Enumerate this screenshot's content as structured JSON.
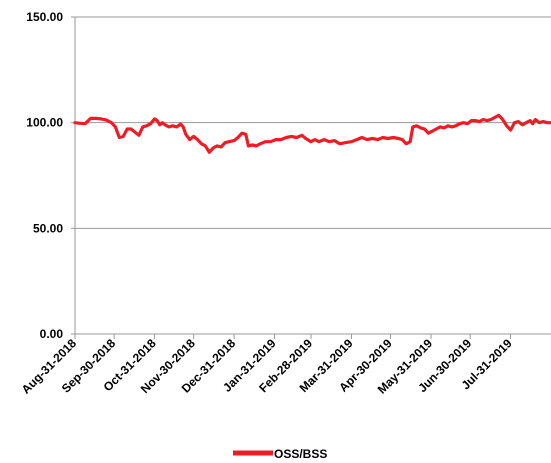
{
  "chart_data": {
    "type": "line",
    "title": "",
    "xlabel": "",
    "ylabel": "",
    "ylim": [
      0,
      150
    ],
    "y_ticks": [
      "0.00",
      "50.00",
      "100.00",
      "150.00"
    ],
    "x_range": [
      "2018-08-31",
      "2019-08-31"
    ],
    "x_ticks": [
      {
        "date": "2018-08-31",
        "label": "Aug-31-2018"
      },
      {
        "date": "2018-09-30",
        "label": "Sep-30-2018"
      },
      {
        "date": "2018-10-31",
        "label": "Oct-31-2018"
      },
      {
        "date": "2018-11-30",
        "label": "Nov-30-2018"
      },
      {
        "date": "2018-12-31",
        "label": "Dec-31-2018"
      },
      {
        "date": "2019-01-31",
        "label": "Jan-31-2019"
      },
      {
        "date": "2019-02-28",
        "label": "Feb-28-2019"
      },
      {
        "date": "2019-03-31",
        "label": "Mar-31-2019"
      },
      {
        "date": "2019-04-30",
        "label": "Apr-30-2019"
      },
      {
        "date": "2019-05-31",
        "label": "May-31-2019"
      },
      {
        "date": "2019-06-30",
        "label": "Jun-30-2019"
      },
      {
        "date": "2019-07-31",
        "label": "Jul-31-2019"
      }
    ],
    "grid": "horizontal",
    "legend": "bottom-center",
    "series": [
      {
        "name": "OSS/BSS",
        "color": "#ee1c25",
        "points": [
          [
            "2018-08-31",
            100.0
          ],
          [
            "2018-09-04",
            99.7
          ],
          [
            "2018-09-08",
            99.6
          ],
          [
            "2018-09-12",
            102.0
          ],
          [
            "2018-09-16",
            102.0
          ],
          [
            "2018-09-20",
            101.8
          ],
          [
            "2018-09-24",
            101.2
          ],
          [
            "2018-09-28",
            100.0
          ],
          [
            "2018-10-01",
            98.0
          ],
          [
            "2018-10-04",
            93.0
          ],
          [
            "2018-10-07",
            93.5
          ],
          [
            "2018-10-10",
            97.0
          ],
          [
            "2018-10-13",
            97.0
          ],
          [
            "2018-10-16",
            95.5
          ],
          [
            "2018-10-19",
            94.0
          ],
          [
            "2018-10-22",
            98.0
          ],
          [
            "2018-10-25",
            98.5
          ],
          [
            "2018-10-28",
            99.5
          ],
          [
            "2018-10-31",
            101.8
          ],
          [
            "2018-11-02",
            101.0
          ],
          [
            "2018-11-04",
            99.0
          ],
          [
            "2018-11-06",
            100.0
          ],
          [
            "2018-11-08",
            99.0
          ],
          [
            "2018-11-11",
            98.0
          ],
          [
            "2018-11-14",
            98.5
          ],
          [
            "2018-11-17",
            98.0
          ],
          [
            "2018-11-20",
            99.3
          ],
          [
            "2018-11-22",
            98.0
          ],
          [
            "2018-11-24",
            94.5
          ],
          [
            "2018-11-27",
            92.0
          ],
          [
            "2018-11-30",
            93.5
          ],
          [
            "2018-12-03",
            92.0
          ],
          [
            "2018-12-06",
            90.0
          ],
          [
            "2018-12-09",
            89.0
          ],
          [
            "2018-12-12",
            86.0
          ],
          [
            "2018-12-15",
            88.0
          ],
          [
            "2018-12-18",
            89.0
          ],
          [
            "2018-12-21",
            88.5
          ],
          [
            "2018-12-24",
            90.5
          ],
          [
            "2018-12-27",
            91.0
          ],
          [
            "2018-12-31",
            91.5
          ],
          [
            "2019-01-03",
            93.0
          ],
          [
            "2019-01-06",
            95.0
          ],
          [
            "2019-01-09",
            94.5
          ],
          [
            "2019-01-11",
            89.0
          ],
          [
            "2019-01-14",
            89.5
          ],
          [
            "2019-01-17",
            89.0
          ],
          [
            "2019-01-20",
            90.0
          ],
          [
            "2019-01-24",
            91.0
          ],
          [
            "2019-01-28",
            91.0
          ],
          [
            "2019-02-01",
            92.0
          ],
          [
            "2019-02-05",
            92.0
          ],
          [
            "2019-02-09",
            93.0
          ],
          [
            "2019-02-13",
            93.5
          ],
          [
            "2019-02-17",
            93.0
          ],
          [
            "2019-02-21",
            94.0
          ],
          [
            "2019-02-24",
            92.5
          ],
          [
            "2019-02-28",
            91.0
          ],
          [
            "2019-03-03",
            92.0
          ],
          [
            "2019-03-06",
            91.0
          ],
          [
            "2019-03-10",
            92.0
          ],
          [
            "2019-03-14",
            91.0
          ],
          [
            "2019-03-18",
            91.5
          ],
          [
            "2019-03-22",
            90.0
          ],
          [
            "2019-03-26",
            90.5
          ],
          [
            "2019-03-31",
            91.0
          ],
          [
            "2019-04-04",
            92.0
          ],
          [
            "2019-04-08",
            93.0
          ],
          [
            "2019-04-12",
            92.0
          ],
          [
            "2019-04-16",
            92.5
          ],
          [
            "2019-04-20",
            92.0
          ],
          [
            "2019-04-24",
            93.0
          ],
          [
            "2019-04-28",
            92.5
          ],
          [
            "2019-05-02",
            93.0
          ],
          [
            "2019-05-06",
            92.5
          ],
          [
            "2019-05-09",
            92.0
          ],
          [
            "2019-05-12",
            90.0
          ],
          [
            "2019-05-15",
            91.0
          ],
          [
            "2019-05-17",
            98.0
          ],
          [
            "2019-05-20",
            98.5
          ],
          [
            "2019-05-23",
            97.5
          ],
          [
            "2019-05-26",
            97.0
          ],
          [
            "2019-05-29",
            95.0
          ],
          [
            "2019-06-01",
            96.0
          ],
          [
            "2019-06-04",
            97.0
          ],
          [
            "2019-06-07",
            98.0
          ],
          [
            "2019-06-10",
            97.5
          ],
          [
            "2019-06-13",
            98.5
          ],
          [
            "2019-06-16",
            98.0
          ],
          [
            "2019-06-19",
            98.5
          ],
          [
            "2019-06-22",
            99.5
          ],
          [
            "2019-06-25",
            100.0
          ],
          [
            "2019-06-28",
            99.5
          ],
          [
            "2019-07-01",
            101.0
          ],
          [
            "2019-07-04",
            101.0
          ],
          [
            "2019-07-07",
            100.5
          ],
          [
            "2019-07-10",
            101.5
          ],
          [
            "2019-07-13",
            101.0
          ],
          [
            "2019-07-16",
            101.5
          ],
          [
            "2019-07-19",
            102.5
          ],
          [
            "2019-07-22",
            103.5
          ],
          [
            "2019-07-25",
            101.5
          ],
          [
            "2019-07-28",
            98.5
          ],
          [
            "2019-07-31",
            96.5
          ],
          [
            "2019-08-03",
            100.0
          ],
          [
            "2019-08-06",
            100.5
          ],
          [
            "2019-08-09",
            99.0
          ],
          [
            "2019-08-12",
            100.0
          ],
          [
            "2019-08-15",
            101.0
          ],
          [
            "2019-08-17",
            99.5
          ],
          [
            "2019-08-19",
            101.5
          ],
          [
            "2019-08-22",
            100.0
          ],
          [
            "2019-08-25",
            100.5
          ],
          [
            "2019-08-28",
            100.0
          ],
          [
            "2019-08-31",
            100.0
          ]
        ]
      }
    ]
  }
}
